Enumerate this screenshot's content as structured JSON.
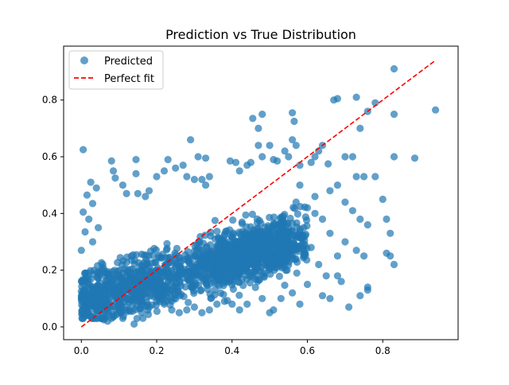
{
  "chart_data": {
    "type": "scatter",
    "title": "Prediction vs True Distribution",
    "xlabel": "",
    "ylabel": "",
    "xlim": [
      -0.047,
      1.0
    ],
    "ylim": [
      -0.045,
      0.99
    ],
    "xticks": [
      "0.0",
      "0.2",
      "0.4",
      "0.6",
      "0.8"
    ],
    "xtick_values": [
      0.0,
      0.2,
      0.4,
      0.6,
      0.8
    ],
    "yticks": [
      "0.0",
      "0.2",
      "0.4",
      "0.6",
      "0.8"
    ],
    "ytick_values": [
      0.0,
      0.2,
      0.4,
      0.6,
      0.8
    ],
    "grid": false,
    "legend_position": "top-left",
    "series": [
      {
        "name": "Predicted",
        "kind": "scatter",
        "color": "#1f77b4",
        "alpha": 0.7,
        "points": [
          [
            0.005,
            0.625
          ],
          [
            0.005,
            0.405
          ],
          [
            0.015,
            0.465
          ],
          [
            0.025,
            0.51
          ],
          [
            0.01,
            0.335
          ],
          [
            0.0,
            0.27
          ],
          [
            0.02,
            0.38
          ],
          [
            0.03,
            0.435
          ],
          [
            0.04,
            0.49
          ],
          [
            0.045,
            0.35
          ],
          [
            0.03,
            0.3
          ],
          [
            0.02,
            0.19
          ],
          [
            0.0,
            0.1
          ],
          [
            0.01,
            0.06
          ],
          [
            0.02,
            0.04
          ],
          [
            0.03,
            0.035
          ],
          [
            0.05,
            0.06
          ],
          [
            0.06,
            0.025
          ],
          [
            0.07,
            0.02
          ],
          [
            0.085,
            0.035
          ],
          [
            0.085,
            0.55
          ],
          [
            0.09,
            0.525
          ],
          [
            0.08,
            0.585
          ],
          [
            0.11,
            0.5
          ],
          [
            0.12,
            0.47
          ],
          [
            0.145,
            0.54
          ],
          [
            0.145,
            0.59
          ],
          [
            0.15,
            0.47
          ],
          [
            0.17,
            0.46
          ],
          [
            0.18,
            0.48
          ],
          [
            0.2,
            0.53
          ],
          [
            0.22,
            0.55
          ],
          [
            0.23,
            0.59
          ],
          [
            0.25,
            0.56
          ],
          [
            0.27,
            0.57
          ],
          [
            0.28,
            0.53
          ],
          [
            0.3,
            0.52
          ],
          [
            0.32,
            0.52
          ],
          [
            0.33,
            0.5
          ],
          [
            0.34,
            0.53
          ],
          [
            0.29,
            0.66
          ],
          [
            0.31,
            0.6
          ],
          [
            0.33,
            0.595
          ],
          [
            0.395,
            0.585
          ],
          [
            0.41,
            0.58
          ],
          [
            0.42,
            0.55
          ],
          [
            0.44,
            0.57
          ],
          [
            0.45,
            0.58
          ],
          [
            0.455,
            0.735
          ],
          [
            0.47,
            0.7
          ],
          [
            0.48,
            0.75
          ],
          [
            0.5,
            0.64
          ],
          [
            0.47,
            0.64
          ],
          [
            0.48,
            0.6
          ],
          [
            0.51,
            0.59
          ],
          [
            0.52,
            0.585
          ],
          [
            0.54,
            0.62
          ],
          [
            0.55,
            0.6
          ],
          [
            0.56,
            0.755
          ],
          [
            0.565,
            0.725
          ],
          [
            0.56,
            0.66
          ],
          [
            0.57,
            0.64
          ],
          [
            0.58,
            0.57
          ],
          [
            0.61,
            0.58
          ],
          [
            0.62,
            0.6
          ],
          [
            0.63,
            0.62
          ],
          [
            0.64,
            0.64
          ],
          [
            0.655,
            0.575
          ],
          [
            0.67,
            0.8
          ],
          [
            0.68,
            0.805
          ],
          [
            0.7,
            0.6
          ],
          [
            0.72,
            0.6
          ],
          [
            0.73,
            0.81
          ],
          [
            0.74,
            0.7
          ],
          [
            0.76,
            0.76
          ],
          [
            0.78,
            0.79
          ],
          [
            0.83,
            0.91
          ],
          [
            0.83,
            0.75
          ],
          [
            0.83,
            0.6
          ],
          [
            0.885,
            0.595
          ],
          [
            0.94,
            0.765
          ],
          [
            0.73,
            0.53
          ],
          [
            0.75,
            0.53
          ],
          [
            0.78,
            0.53
          ],
          [
            0.8,
            0.45
          ],
          [
            0.81,
            0.38
          ],
          [
            0.82,
            0.33
          ],
          [
            0.82,
            0.25
          ],
          [
            0.83,
            0.22
          ],
          [
            0.81,
            0.26
          ],
          [
            0.76,
            0.14
          ],
          [
            0.76,
            0.13
          ],
          [
            0.74,
            0.11
          ],
          [
            0.71,
            0.07
          ],
          [
            0.69,
            0.16
          ],
          [
            0.68,
            0.18
          ],
          [
            0.66,
            0.1
          ],
          [
            0.64,
            0.11
          ],
          [
            0.6,
            0.15
          ],
          [
            0.58,
            0.08
          ],
          [
            0.56,
            0.12
          ],
          [
            0.53,
            0.1
          ],
          [
            0.51,
            0.06
          ],
          [
            0.5,
            0.05
          ],
          [
            0.48,
            0.1
          ],
          [
            0.44,
            0.08
          ],
          [
            0.42,
            0.06
          ],
          [
            0.4,
            0.08
          ],
          [
            0.38,
            0.09
          ],
          [
            0.36,
            0.08
          ],
          [
            0.34,
            0.06
          ],
          [
            0.32,
            0.05
          ],
          [
            0.3,
            0.07
          ],
          [
            0.28,
            0.06
          ],
          [
            0.26,
            0.05
          ],
          [
            0.24,
            0.06
          ],
          [
            0.22,
            0.08
          ],
          [
            0.2,
            0.09
          ],
          [
            0.18,
            0.07
          ],
          [
            0.16,
            0.05
          ],
          [
            0.14,
            0.01
          ],
          [
            0.12,
            0.06
          ],
          [
            0.1,
            0.08
          ],
          [
            0.08,
            0.03
          ],
          [
            0.06,
            0.07
          ],
          [
            0.7,
            0.44
          ],
          [
            0.72,
            0.41
          ],
          [
            0.74,
            0.38
          ],
          [
            0.76,
            0.36
          ],
          [
            0.73,
            0.27
          ],
          [
            0.75,
            0.25
          ],
          [
            0.7,
            0.3
          ],
          [
            0.68,
            0.25
          ],
          [
            0.66,
            0.33
          ],
          [
            0.64,
            0.38
          ],
          [
            0.62,
            0.4
          ],
          [
            0.6,
            0.42
          ],
          [
            0.62,
            0.46
          ],
          [
            0.66,
            0.48
          ],
          [
            0.68,
            0.5
          ],
          [
            0.58,
            0.5
          ],
          [
            0.57,
            0.44
          ],
          [
            0.59,
            0.35
          ],
          [
            0.61,
            0.28
          ],
          [
            0.63,
            0.22
          ],
          [
            0.65,
            0.18
          ]
        ],
        "cluster": {
          "count": 1700,
          "x_range": [
            0.0,
            0.6
          ],
          "y_range": [
            0.05,
            0.5
          ],
          "note": "dense overlapping cloud of points"
        }
      },
      {
        "name": "Perfect fit",
        "kind": "line",
        "style": "dashed",
        "color": "#ff0000",
        "x": [
          0.0,
          0.94
        ],
        "y": [
          0.0,
          0.94
        ]
      }
    ]
  }
}
